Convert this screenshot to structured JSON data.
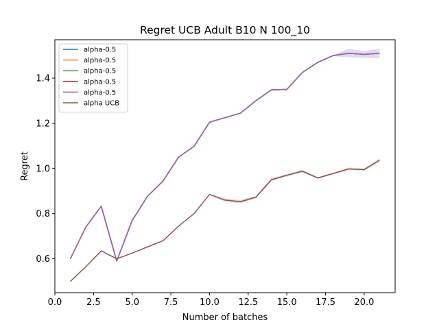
{
  "chart_data": {
    "type": "line",
    "title": "Regret UCB Adult B10 N 100_10",
    "xlabel": "Number of batches",
    "ylabel": "Regret",
    "xlim": [
      0,
      22.0
    ],
    "ylim": [
      0.45,
      1.57
    ],
    "xticks": [
      0.0,
      2.5,
      5.0,
      7.5,
      10.0,
      12.5,
      15.0,
      17.5,
      20.0
    ],
    "xtick_labels": [
      "0.0",
      "2.5",
      "5.0",
      "7.5",
      "10.0",
      "12.5",
      "15.0",
      "17.5",
      "20.0"
    ],
    "yticks": [
      0.6,
      0.8,
      1.0,
      1.2,
      1.4
    ],
    "ytick_labels": [
      "0.6",
      "0.8",
      "1.0",
      "1.2",
      "1.4"
    ],
    "grid": false,
    "legend_position": "top-left",
    "x": [
      1,
      2,
      3,
      4,
      5,
      6,
      7,
      8,
      9,
      10,
      11,
      12,
      13,
      14,
      15,
      16,
      17,
      18,
      19,
      20,
      21
    ],
    "series": [
      {
        "name": "alpha-0.5",
        "color": "#1f77b4",
        "values": [
          0.6,
          0.74,
          0.833,
          0.59,
          0.77,
          0.878,
          0.945,
          1.05,
          1.098,
          1.205,
          1.225,
          1.245,
          1.3,
          1.348,
          1.35,
          1.425,
          1.47,
          1.5,
          1.51,
          1.505,
          1.51
        ],
        "band_low": null,
        "band_high": null
      },
      {
        "name": "alpha-0.5",
        "color": "#ff7f0e",
        "values": [
          0.6,
          0.74,
          0.833,
          0.59,
          0.77,
          0.878,
          0.945,
          1.05,
          1.098,
          1.205,
          1.225,
          1.245,
          1.3,
          1.348,
          1.35,
          1.425,
          1.47,
          1.5,
          1.51,
          1.505,
          1.51
        ],
        "band_low": null,
        "band_high": null
      },
      {
        "name": "alpha-0.5",
        "color": "#2ca02c",
        "values": [
          0.6,
          0.74,
          0.833,
          0.59,
          0.77,
          0.878,
          0.945,
          1.05,
          1.098,
          1.205,
          1.225,
          1.245,
          1.3,
          1.348,
          1.35,
          1.425,
          1.47,
          1.5,
          1.51,
          1.505,
          1.51
        ],
        "band_low": null,
        "band_high": null
      },
      {
        "name": "alpha-0.5",
        "color": "#d62728",
        "values": [
          0.6,
          0.74,
          0.833,
          0.59,
          0.77,
          0.878,
          0.945,
          1.05,
          1.098,
          1.205,
          1.225,
          1.245,
          1.3,
          1.348,
          1.35,
          1.425,
          1.47,
          1.5,
          1.51,
          1.505,
          1.51
        ],
        "band_low": null,
        "band_high": null
      },
      {
        "name": "alpha-0.5",
        "color": "#9467bd",
        "values": [
          0.6,
          0.74,
          0.833,
          0.59,
          0.77,
          0.878,
          0.945,
          1.05,
          1.098,
          1.205,
          1.225,
          1.245,
          1.3,
          1.348,
          1.35,
          1.425,
          1.47,
          1.5,
          1.51,
          1.505,
          1.51
        ],
        "band_low": [
          0.6,
          0.74,
          0.833,
          0.59,
          0.77,
          0.878,
          0.945,
          1.05,
          1.098,
          1.205,
          1.225,
          1.245,
          1.3,
          1.348,
          1.35,
          1.425,
          1.47,
          1.497,
          1.492,
          1.49,
          1.488
        ],
        "band_high": [
          0.6,
          0.74,
          0.833,
          0.59,
          0.77,
          0.878,
          0.945,
          1.05,
          1.098,
          1.205,
          1.225,
          1.245,
          1.3,
          1.348,
          1.35,
          1.425,
          1.47,
          1.503,
          1.53,
          1.52,
          1.53
        ]
      },
      {
        "name": "alpha UCB",
        "color": "#8c564b",
        "values": [
          0.5,
          0.565,
          0.635,
          0.6,
          0.625,
          0.653,
          0.68,
          0.745,
          0.8,
          0.885,
          0.86,
          0.853,
          0.873,
          0.95,
          0.97,
          0.988,
          0.958,
          0.978,
          0.998,
          0.995,
          1.037
        ],
        "band_low": [
          0.5,
          0.565,
          0.635,
          0.6,
          0.625,
          0.653,
          0.68,
          0.745,
          0.8,
          0.883,
          0.853,
          0.846,
          0.868,
          0.944,
          0.965,
          0.982,
          0.954,
          0.974,
          0.992,
          0.99,
          1.03
        ],
        "band_high": [
          0.5,
          0.565,
          0.635,
          0.6,
          0.625,
          0.653,
          0.68,
          0.745,
          0.8,
          0.887,
          0.867,
          0.86,
          0.878,
          0.956,
          0.975,
          0.994,
          0.962,
          0.982,
          1.004,
          1.0,
          1.044
        ]
      }
    ]
  }
}
